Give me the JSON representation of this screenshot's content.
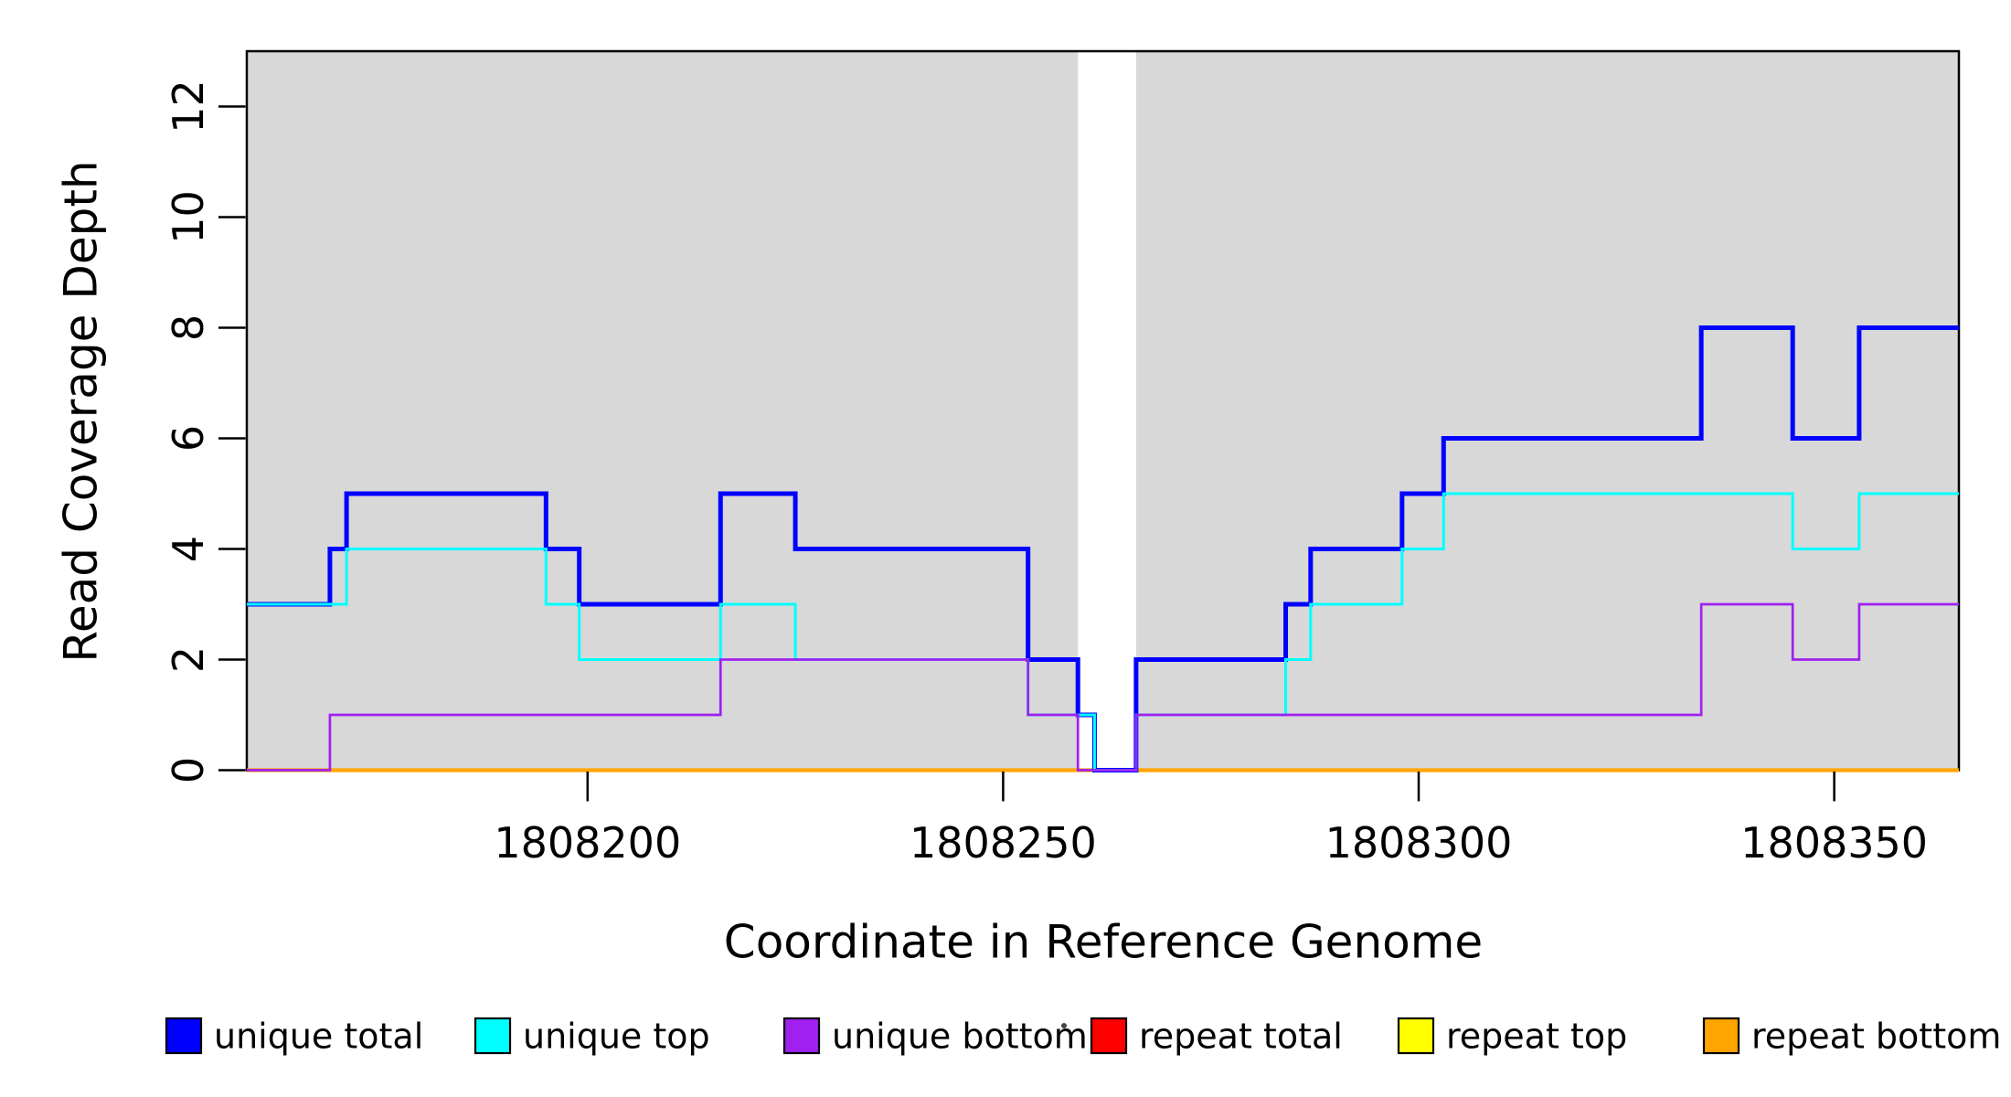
{
  "figure": {
    "background": "#ffffff",
    "plot_border_color": "#000000",
    "highlight_color": "#d8d8d8"
  },
  "y_axis": {
    "title": "Read Coverage Depth",
    "tick_labels": [
      "0",
      "2",
      "4",
      "6",
      "8",
      "10",
      "12"
    ],
    "tick_values": [
      0,
      2,
      4,
      6,
      8,
      10,
      12
    ],
    "range": [
      0,
      13
    ]
  },
  "x_axis": {
    "title": "Coordinate in Reference Genome",
    "tick_labels": [
      "1808200",
      "1808250",
      "1808300",
      "1808350"
    ],
    "tick_values": [
      1808200,
      1808250,
      1808300,
      1808350
    ],
    "range": [
      1808159,
      1808365
    ]
  },
  "legend": {
    "items": [
      {
        "label": "unique total",
        "color": "#0000ff"
      },
      {
        "label": "unique top",
        "color": "#00ffff"
      },
      {
        "label": "unique bottom",
        "color": "#a020f0"
      },
      {
        "label": "repeat total",
        "color": "#ff0000"
      },
      {
        "label": "repeat top",
        "color": "#ffff00"
      },
      {
        "label": "repeat bottom",
        "color": "#ffa500"
      }
    ]
  },
  "chart_data": {
    "type": "line",
    "step_mode": "post",
    "title": "",
    "xlabel": "Coordinate in Reference Genome",
    "ylabel": "Read Coverage Depth",
    "x_range": [
      1808159,
      1808365
    ],
    "y_range": [
      0,
      13
    ],
    "grid": false,
    "legend_position": "bottom",
    "background_highlight_regions": [
      [
        1808159,
        1808259
      ],
      [
        1808266,
        1808365
      ]
    ],
    "gap_region": [
      1808259,
      1808266
    ],
    "series": [
      {
        "name": "unique total",
        "color": "#0000ff",
        "line_width": 5,
        "steps": [
          [
            1808159,
            3
          ],
          [
            1808169,
            4
          ],
          [
            1808171,
            5
          ],
          [
            1808195,
            4
          ],
          [
            1808199,
            3
          ],
          [
            1808216,
            5
          ],
          [
            1808225,
            4
          ],
          [
            1808253,
            2
          ],
          [
            1808259,
            1
          ],
          [
            1808261,
            0
          ],
          [
            1808266,
            2
          ],
          [
            1808284,
            3
          ],
          [
            1808287,
            4
          ],
          [
            1808298,
            5
          ],
          [
            1808303,
            6
          ],
          [
            1808334,
            8
          ],
          [
            1808345,
            6
          ],
          [
            1808353,
            8
          ]
        ]
      },
      {
        "name": "unique top",
        "color": "#00ffff",
        "line_width": 3,
        "steps": [
          [
            1808159,
            3
          ],
          [
            1808171,
            4
          ],
          [
            1808195,
            3
          ],
          [
            1808199,
            2
          ],
          [
            1808216,
            3
          ],
          [
            1808225,
            2
          ],
          [
            1808253,
            1
          ],
          [
            1808261,
            0
          ],
          [
            1808266,
            1
          ],
          [
            1808284,
            2
          ],
          [
            1808287,
            3
          ],
          [
            1808298,
            4
          ],
          [
            1808303,
            5
          ],
          [
            1808345,
            4
          ],
          [
            1808353,
            5
          ]
        ]
      },
      {
        "name": "unique bottom",
        "color": "#a020f0",
        "line_width": 2.7,
        "steps": [
          [
            1808159,
            0
          ],
          [
            1808169,
            1
          ],
          [
            1808216,
            2
          ],
          [
            1808253,
            1
          ],
          [
            1808259,
            0
          ],
          [
            1808266,
            1
          ],
          [
            1808334,
            3
          ],
          [
            1808345,
            2
          ],
          [
            1808353,
            3
          ]
        ]
      },
      {
        "name": "repeat total",
        "color": "#ff0000",
        "line_width": 2.5,
        "steps": [
          [
            1808159,
            0
          ]
        ]
      },
      {
        "name": "repeat top",
        "color": "#ffff00",
        "line_width": 2.5,
        "steps": [
          [
            1808159,
            0
          ]
        ]
      },
      {
        "name": "repeat bottom",
        "color": "#ffa500",
        "line_width": 4.2,
        "steps": [
          [
            1808159,
            0
          ]
        ]
      }
    ],
    "draw_order": [
      3,
      4,
      5,
      0,
      1,
      2
    ]
  }
}
